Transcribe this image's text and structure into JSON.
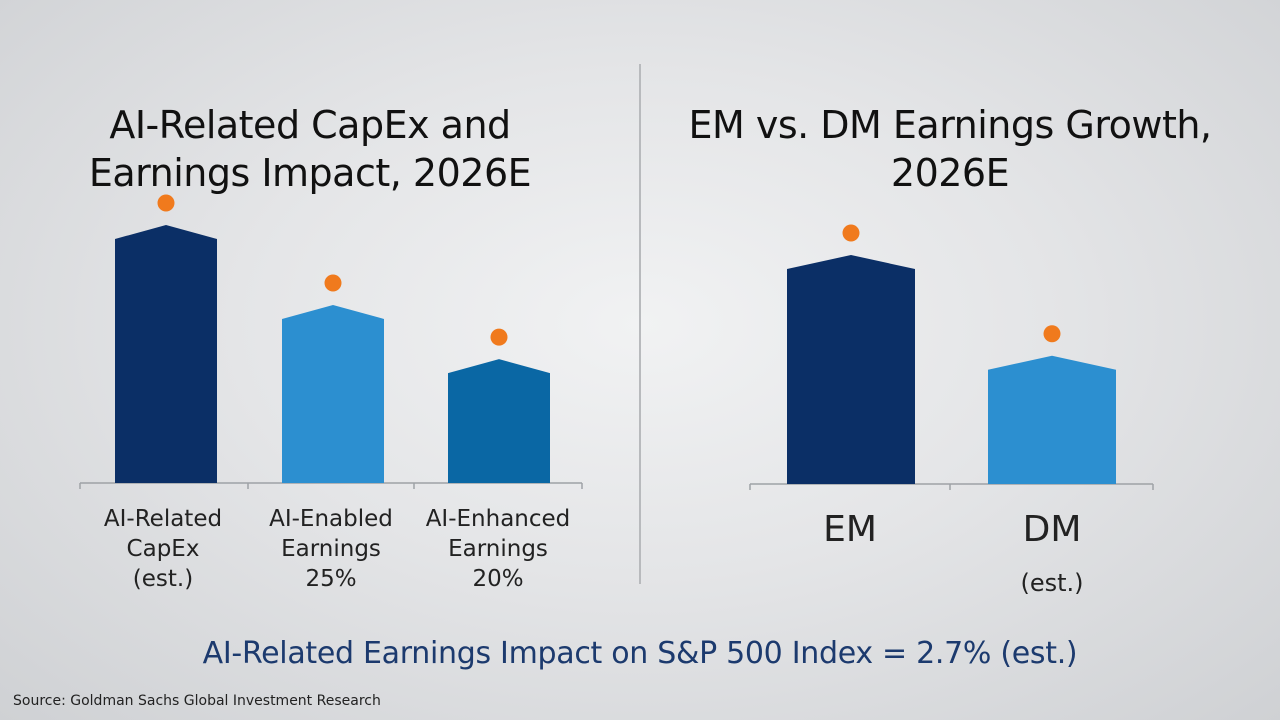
{
  "colors": {
    "navy": "#0b2f66",
    "light_blue": "#2c8fd0",
    "mid_blue": "#0a67a4",
    "orange_dot": "#f07a1d",
    "axis": "#9ea2a6"
  },
  "chart_data": [
    {
      "type": "bar",
      "title_lines": [
        "AI-Related CapEx and",
        "Earnings Impact, 2026E"
      ],
      "categories": [
        {
          "lines": [
            "AI-Related",
            "CapEx",
            "(est.)"
          ]
        },
        {
          "lines": [
            "AI-Enabled",
            "Earnings",
            "25%"
          ]
        },
        {
          "lines": [
            "AI-Enhanced",
            "Earnings",
            "20%"
          ]
        }
      ],
      "values": [
        100,
        69,
        48
      ],
      "ylim": [
        0,
        100
      ],
      "bar_colors": [
        "navy",
        "light_blue",
        "mid_blue"
      ],
      "markers": "orange dot above each bar"
    },
    {
      "type": "bar",
      "title_lines": [
        "EM vs. DM Earnings Growth,",
        "2026E"
      ],
      "categories": [
        {
          "label": "EM"
        },
        {
          "label": "DM",
          "sub": "(est.)"
        }
      ],
      "values": [
        100,
        56
      ],
      "ylim": [
        0,
        100
      ],
      "bar_colors": [
        "navy",
        "light_blue"
      ],
      "markers": "orange dot above each bar"
    }
  ],
  "footer": "AI-Related Earnings Impact on S&P 500 Index = 2.7% (est.)",
  "source": "Source: Goldman Sachs Global Investment Research"
}
